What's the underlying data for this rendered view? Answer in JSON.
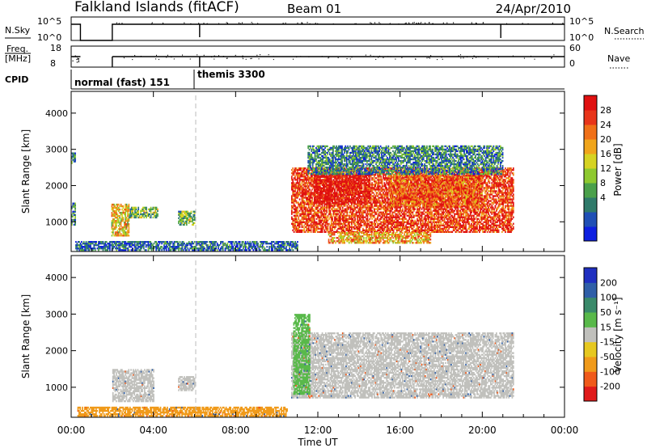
{
  "header": {
    "station": "Falkland Islands (fitACF)",
    "beam": "Beam 01",
    "date": "24/Apr/2010"
  },
  "params": {
    "nsky_label": "N.Sky",
    "nsky_ticks": [
      "10^5",
      "10^0"
    ],
    "nsearch_label": "N.Search",
    "nsearch_ticks": [
      "10^5",
      "10^0"
    ],
    "freq_label": "Freq.",
    "freq_unit": "[MHz]",
    "freq_ticks": [
      "18",
      "8"
    ],
    "nave_label": "Nave",
    "nave_ticks": [
      "60",
      "0"
    ],
    "cpid_label": "CPID",
    "modes": [
      {
        "name": "normal (fast) 151",
        "start_hour": 0.0
      },
      {
        "name": "themis 3300",
        "start_hour": 6.0
      }
    ],
    "nsky_drops_hour": [
      0.45,
      2.0,
      6.25,
      20.9
    ]
  },
  "axes": {
    "x_ticks": [
      "00:00",
      "04:00",
      "08:00",
      "12:00",
      "16:00",
      "20:00",
      "00:00"
    ],
    "x_label": "Time UT",
    "y_ticks": [
      "1000",
      "2000",
      "3000",
      "4000"
    ],
    "y_label": "Slant Range [km]"
  },
  "colorbars": {
    "power": {
      "label": "Power [dB]",
      "ticks": [
        "28",
        "24",
        "20",
        "16",
        "12",
        "8",
        "4"
      ],
      "colors": [
        "#0d1fe0",
        "#1f4fb5",
        "#2f7a6a",
        "#4aa04a",
        "#8ec92f",
        "#d6d322",
        "#f0a51b",
        "#f07018",
        "#e8351a",
        "#e01010"
      ]
    },
    "velocity": {
      "label": "Velocity [m s⁻¹]",
      "ticks": [
        "200",
        "100",
        "50",
        "15",
        "-15",
        "-50",
        "-100",
        "-200"
      ],
      "colors": [
        "#1f2fc0",
        "#2f5fa8",
        "#3a8a6a",
        "#59b94a",
        "#c0c0bc",
        "#e6c820",
        "#f09a1a",
        "#f05a1a",
        "#e01a1a"
      ]
    }
  },
  "chart_data": [
    {
      "type": "heatmap",
      "title": "Power [dB]",
      "xlabel": "Time UT",
      "ylabel": "Slant Range [km]",
      "xlim": [
        0,
        24
      ],
      "ylim": [
        180,
        4600
      ],
      "zlim": [
        0,
        30
      ],
      "regions": [
        {
          "t0": 0.0,
          "t1": 0.2,
          "r0": 900,
          "r1": 1500,
          "z": 8
        },
        {
          "t0": 0.0,
          "t1": 0.2,
          "r0": 2600,
          "r1": 2900,
          "z": 8
        },
        {
          "t0": 1.95,
          "t1": 2.8,
          "r0": 600,
          "r1": 1500,
          "z": 18
        },
        {
          "t0": 2.8,
          "t1": 4.2,
          "r0": 1100,
          "r1": 1400,
          "z": 12
        },
        {
          "t0": 5.2,
          "t1": 6.0,
          "r0": 900,
          "r1": 1300,
          "z": 12
        },
        {
          "t0": 10.7,
          "t1": 21.5,
          "r0": 700,
          "r1": 2500,
          "z": 26
        },
        {
          "t0": 11.8,
          "t1": 14.5,
          "r0": 1500,
          "r1": 2300,
          "z": 30
        },
        {
          "t0": 15.5,
          "t1": 20.0,
          "r0": 1400,
          "r1": 2300,
          "z": 24
        },
        {
          "t0": 11.5,
          "t1": 21.0,
          "r0": 2300,
          "r1": 3100,
          "z": 8
        },
        {
          "t0": 0.2,
          "t1": 11.0,
          "r0": 200,
          "r1": 450,
          "z": 6
        },
        {
          "t0": 12.5,
          "t1": 17.5,
          "r0": 400,
          "r1": 700,
          "z": 20
        }
      ]
    },
    {
      "type": "heatmap",
      "title": "Velocity [m s⁻¹]",
      "xlabel": "Time UT",
      "ylabel": "Slant Range [km]",
      "xlim": [
        0,
        24
      ],
      "ylim": [
        180,
        4600
      ],
      "zlim": [
        -200,
        200
      ],
      "regions": [
        {
          "t0": 2.0,
          "t1": 4.0,
          "r0": 600,
          "r1": 1500,
          "z": 0
        },
        {
          "t0": 5.2,
          "t1": 6.0,
          "r0": 900,
          "r1": 1300,
          "z": 0
        },
        {
          "t0": 10.7,
          "t1": 21.5,
          "r0": 700,
          "r1": 2500,
          "z": 0
        },
        {
          "t0": 10.8,
          "t1": 11.6,
          "r0": 800,
          "r1": 3000,
          "z": 40
        },
        {
          "t0": 0.3,
          "t1": 10.5,
          "r0": 200,
          "r1": 450,
          "z": -60
        }
      ]
    }
  ]
}
